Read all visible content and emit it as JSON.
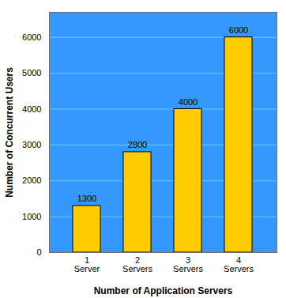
{
  "chart_data": {
    "type": "bar",
    "xlabel": "Number of Application Servers",
    "ylabel": "Number of Concurrent Users",
    "categories": [
      "1 Server",
      "2 Servers",
      "3 Servers",
      "4 Servers"
    ],
    "values": [
      1300,
      2800,
      4000,
      6000
    ],
    "color": "#ffcc00",
    "ylim": [
      0,
      6700
    ],
    "yticks": [
      0,
      1000,
      2000,
      3000,
      4000,
      5000,
      6000
    ],
    "grid": true,
    "data_labels": true
  }
}
